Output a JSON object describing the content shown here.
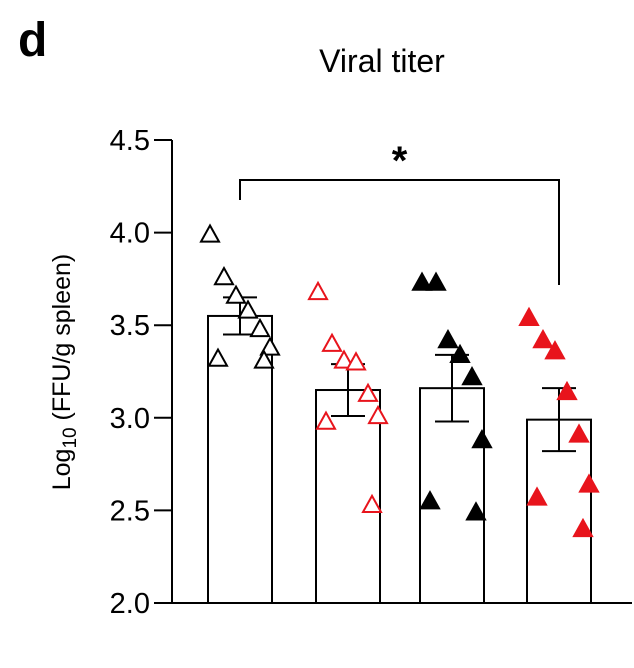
{
  "panel_label": "d",
  "chart_data": {
    "type": "bar",
    "title": "Viral titer",
    "xlabel": "",
    "ylabel_prefix": "Log",
    "ylabel_sub": "10",
    "ylabel_rest": " (FFU/g spleen)",
    "ylim": [
      2.0,
      4.5
    ],
    "yticks": [
      "2.0",
      "2.5",
      "3.0",
      "3.5",
      "4.0",
      "4.5"
    ],
    "significance": {
      "from": 0,
      "to": 3,
      "label": "*"
    },
    "groups": [
      {
        "mean": 3.55,
        "sem": 0.1,
        "marker": "open",
        "color": "#000000",
        "points": [
          3.99,
          3.76,
          3.66,
          3.58,
          3.48,
          3.38,
          3.32,
          3.31
        ]
      },
      {
        "mean": 3.15,
        "sem": 0.14,
        "marker": "open",
        "color": "#e8141c",
        "points": [
          3.68,
          3.4,
          3.31,
          3.3,
          3.13,
          3.01,
          2.98,
          2.53
        ]
      },
      {
        "mean": 3.16,
        "sem": 0.18,
        "marker": "filled",
        "color": "#000000",
        "points": [
          3.73,
          3.73,
          3.42,
          3.34,
          3.22,
          2.88,
          2.55,
          2.49
        ]
      },
      {
        "mean": 2.99,
        "sem": 0.17,
        "marker": "filled",
        "color": "#e8141c",
        "points": [
          3.54,
          3.42,
          3.36,
          3.14,
          2.91,
          2.64,
          2.57,
          2.4
        ]
      }
    ]
  }
}
